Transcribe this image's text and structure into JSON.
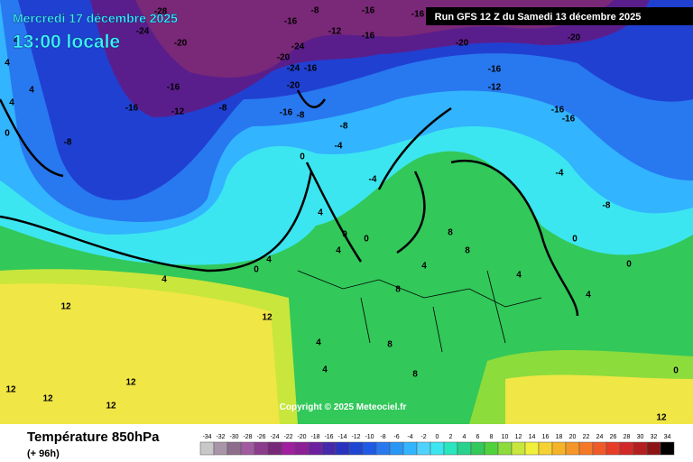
{
  "header": {
    "date": "Mercredi 17 décembre 2025",
    "time": "13:00 locale",
    "run": "Run GFS 12 Z du Samedi 13 décembre 2025"
  },
  "map": {
    "copyright": "Copyright © 2025 Meteociel.fr",
    "contour_labels": [
      -28,
      -24,
      -20,
      -16,
      -16,
      -12,
      -8,
      -16,
      -8,
      -12,
      -16,
      -16,
      -24,
      -20,
      -24,
      -16,
      -20,
      -16,
      -8,
      -16,
      -20,
      -20,
      -16,
      -12,
      -16,
      -16,
      -8,
      -4,
      -8,
      0,
      -4,
      -4,
      -8,
      4,
      0,
      4,
      0,
      4,
      4,
      4,
      4,
      4,
      0,
      12,
      12,
      12,
      12,
      12,
      12,
      12,
      8,
      8,
      8,
      8,
      8,
      4,
      4,
      4,
      4,
      4,
      4,
      0,
      0,
      0,
      0
    ]
  },
  "footer": {
    "title": "Température 850hPa",
    "subtitle": "(+ 96h)"
  },
  "legend": {
    "values": [
      -34,
      -32,
      -30,
      -28,
      -26,
      -24,
      -22,
      -20,
      -18,
      -16,
      -14,
      -12,
      -10,
      -8,
      -6,
      -4,
      -2,
      0,
      2,
      4,
      6,
      8,
      10,
      12,
      14,
      16,
      18,
      20,
      22,
      24,
      26,
      28,
      30,
      32,
      34
    ],
    "colors": [
      "#c8c8c8",
      "#a896a8",
      "#8c6e8c",
      "#a05aa0",
      "#8c3c8c",
      "#782878",
      "#a01ea0",
      "#8c1e96",
      "#6e1ea0",
      "#4628aa",
      "#2832be",
      "#1e46d2",
      "#1e5ae6",
      "#2878f0",
      "#2896f5",
      "#32b4ff",
      "#50d2ff",
      "#3ce6f0",
      "#28e6be",
      "#28d28c",
      "#32c85a",
      "#50d23c",
      "#8cdc3c",
      "#c8e63c",
      "#f0f03c",
      "#f5d232",
      "#f5b428",
      "#f59628",
      "#f57828",
      "#f05a28",
      "#e63c28",
      "#d22828",
      "#b41e1e",
      "#8c1414",
      "#000000"
    ]
  }
}
